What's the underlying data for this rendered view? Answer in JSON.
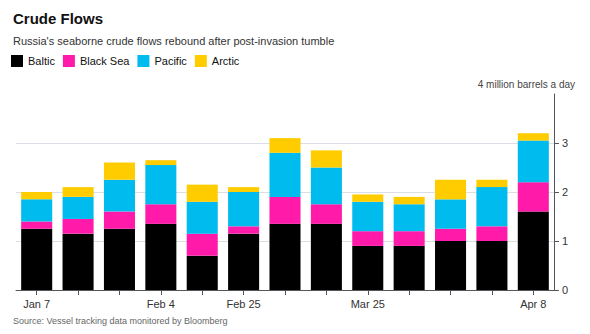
{
  "chart_data": {
    "type": "bar",
    "title": "Crude Flows",
    "subtitle": "Russia's seaborne crude flows rebound after post-invasion tumble",
    "annotation": "4 million barrels a day",
    "source": "Source: Vessel tracking data monitored by Bloomberg",
    "categories": [
      "Jan 7",
      null,
      null,
      "Feb 4",
      null,
      "Feb 25",
      null,
      null,
      "Mar 25",
      null,
      null,
      null,
      "Apr 8"
    ],
    "series": [
      {
        "name": "Baltic",
        "color": "#000000",
        "values": [
          1.25,
          1.15,
          1.25,
          1.35,
          0.7,
          1.15,
          1.35,
          1.35,
          0.9,
          0.9,
          1.0,
          1.0,
          1.6
        ]
      },
      {
        "name": "Black Sea",
        "color": "#ff1aaa",
        "values": [
          0.15,
          0.3,
          0.35,
          0.4,
          0.45,
          0.15,
          0.55,
          0.4,
          0.3,
          0.3,
          0.25,
          0.3,
          0.6
        ]
      },
      {
        "name": "Pacific",
        "color": "#00bbee",
        "values": [
          0.45,
          0.45,
          0.65,
          0.8,
          0.65,
          0.7,
          0.9,
          0.75,
          0.6,
          0.55,
          0.6,
          0.8,
          0.85
        ]
      },
      {
        "name": "Arctic",
        "color": "#ffcc00",
        "values": [
          0.15,
          0.2,
          0.35,
          0.1,
          0.35,
          0.1,
          0.3,
          0.35,
          0.15,
          0.15,
          0.4,
          0.15,
          0.15
        ]
      }
    ],
    "stacked": true,
    "ylim": [
      0,
      4.0
    ],
    "yticks": [
      0,
      1,
      2,
      3
    ],
    "grid": true,
    "legend": "top-left"
  }
}
